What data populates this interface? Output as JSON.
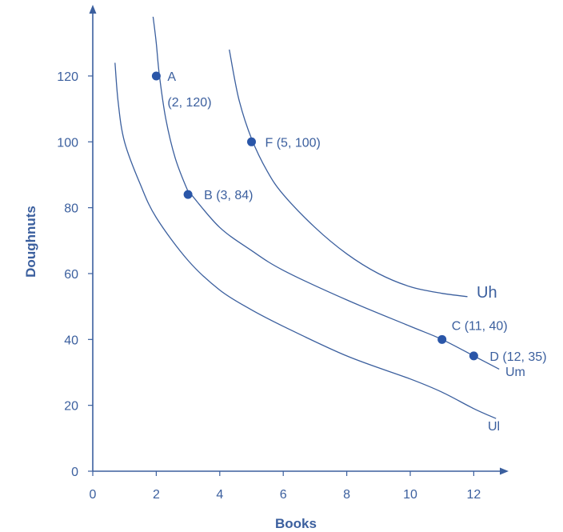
{
  "chart_data": {
    "type": "line",
    "xlabel": "Books",
    "ylabel": "Doughnuts",
    "xlim": [
      0,
      13
    ],
    "ylim": [
      0,
      135
    ],
    "x_ticks": [
      0,
      2,
      4,
      6,
      8,
      10,
      12
    ],
    "y_ticks": [
      0,
      20,
      40,
      60,
      80,
      100,
      120
    ],
    "grid": false,
    "series": [
      {
        "name": "Uh",
        "color": "#3b5f9e",
        "x": [
          4.3,
          4.6,
          5.0,
          5.5,
          6.0,
          7.0,
          8.0,
          9.0,
          10.0,
          11.0,
          11.8
        ],
        "y": [
          128,
          113,
          101,
          91,
          84,
          74,
          66,
          60,
          56,
          54,
          53
        ]
      },
      {
        "name": "Um",
        "color": "#3b5f9e",
        "x": [
          1.9,
          2.0,
          2.1,
          2.3,
          2.6,
          3.0,
          3.1,
          4.0,
          5.0,
          6.0,
          8.0,
          10.0,
          11.0,
          12.0,
          12.8
        ],
        "y": [
          138,
          130,
          120,
          107,
          95,
          85,
          84,
          74,
          67,
          61,
          52,
          44,
          40,
          35,
          31
        ]
      },
      {
        "name": "Ul",
        "color": "#3b5f9e",
        "x": [
          0.7,
          0.8,
          1.0,
          1.5,
          2.0,
          3.0,
          4.0,
          5.0,
          6.0,
          8.0,
          10.0,
          11.0,
          12.0,
          12.7
        ],
        "y": [
          124,
          112,
          100,
          87,
          77,
          64,
          55,
          49,
          44,
          35,
          28,
          24,
          19,
          16
        ]
      }
    ],
    "points": [
      {
        "id": "A",
        "x": 2,
        "y": 120,
        "text": "A",
        "text2": "(2, 120)"
      },
      {
        "id": "B",
        "x": 3,
        "y": 84,
        "text": "B (3, 84)"
      },
      {
        "id": "F",
        "x": 5,
        "y": 100,
        "text": "F (5, 100)"
      },
      {
        "id": "C",
        "x": 11,
        "y": 40,
        "text": "C (11, 40)"
      },
      {
        "id": "D",
        "x": 12,
        "y": 35,
        "text": "D (12, 35)"
      }
    ]
  }
}
